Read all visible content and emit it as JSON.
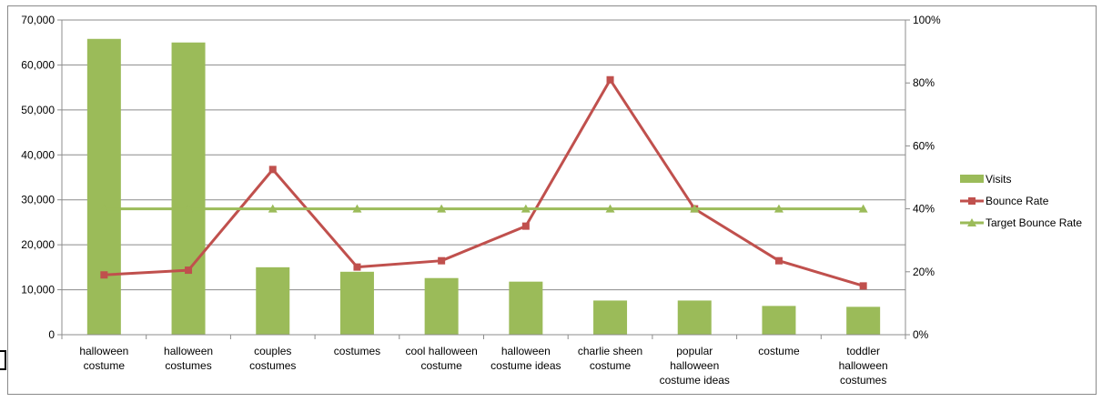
{
  "chart_data": {
    "type": "bar",
    "categories": [
      [
        "halloween",
        "costume"
      ],
      [
        "halloween",
        "costumes"
      ],
      [
        "couples",
        "costumes"
      ],
      [
        "costumes"
      ],
      [
        "cool halloween",
        "costume"
      ],
      [
        "halloween",
        "costume ideas"
      ],
      [
        "charlie sheen",
        "costume"
      ],
      [
        "popular",
        "halloween",
        "costume ideas"
      ],
      [
        "costume"
      ],
      [
        "toddler",
        "halloween",
        "costumes"
      ]
    ],
    "series": [
      {
        "name": "Visits",
        "type": "bar",
        "axis": "left",
        "color": "#9bbb59",
        "values": [
          65800,
          65000,
          15000,
          14000,
          12600,
          11800,
          7600,
          7600,
          6400,
          6200
        ]
      },
      {
        "name": "Bounce Rate",
        "type": "line",
        "axis": "right",
        "color": "#c0504d",
        "marker": "square",
        "values": [
          0.19,
          0.205,
          0.525,
          0.215,
          0.235,
          0.345,
          0.81,
          0.4,
          0.235,
          0.155
        ]
      },
      {
        "name": "Target Bounce Rate",
        "type": "line",
        "axis": "right",
        "color": "#9bbb59",
        "marker": "triangle",
        "values": [
          0.4,
          0.4,
          0.4,
          0.4,
          0.4,
          0.4,
          0.4,
          0.4,
          0.4,
          0.4
        ]
      }
    ],
    "y_left": {
      "ylim": [
        0,
        70000
      ],
      "ticks": [
        "0",
        "10,000",
        "20,000",
        "30,000",
        "40,000",
        "50,000",
        "60,000",
        "70,000"
      ]
    },
    "y_right": {
      "ylim": [
        0,
        1
      ],
      "ticks": [
        "0%",
        "20%",
        "40%",
        "60%",
        "80%",
        "100%"
      ]
    },
    "grid": true,
    "legend": "right",
    "title": "",
    "xlabel": "",
    "ylabel": ""
  }
}
